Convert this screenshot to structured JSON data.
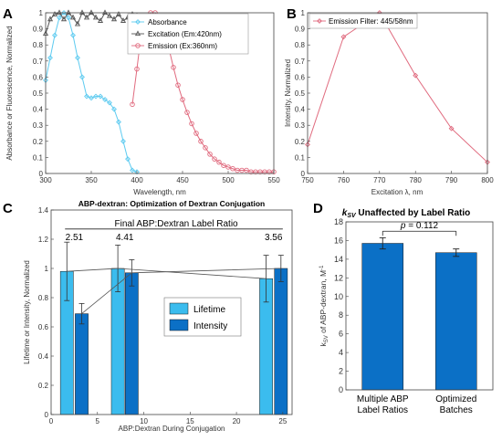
{
  "panels": [
    {
      "id": "A",
      "type": "line",
      "xlabel": "Wavelength, nm",
      "ylabel": "Absorbance or Fluorescence, Normalized",
      "xlim": [
        300,
        550
      ],
      "ylim": [
        0,
        1
      ],
      "xticks": [
        300,
        350,
        400,
        450,
        500,
        550
      ],
      "yticks": [
        0,
        0.1,
        0.2,
        0.3,
        0.4,
        0.5,
        0.6,
        0.7,
        0.8,
        0.9,
        1
      ],
      "legend": "top-right",
      "series": [
        {
          "name": "Absorbance",
          "color": "#5ecbf0",
          "marker": "diamond",
          "x": [
            300,
            305,
            310,
            315,
            320,
            325,
            330,
            335,
            340,
            345,
            350,
            355,
            360,
            365,
            370,
            375,
            380,
            385,
            390,
            395,
            400
          ],
          "y": [
            0.58,
            0.72,
            0.86,
            0.97,
            1.0,
            0.97,
            0.86,
            0.72,
            0.6,
            0.48,
            0.47,
            0.48,
            0.48,
            0.46,
            0.44,
            0.4,
            0.32,
            0.2,
            0.09,
            0.02,
            0.01
          ]
        },
        {
          "name": "Excitation (Em:420nm)",
          "color": "#555555",
          "marker": "triangle",
          "x": [
            300,
            305,
            310,
            315,
            320,
            325,
            330,
            335,
            340,
            345,
            350,
            355,
            360,
            365,
            370,
            375,
            380,
            385,
            390,
            395,
            400
          ],
          "y": [
            0.87,
            0.96,
            0.99,
            1.0,
            0.96,
            1.0,
            0.97,
            0.93,
            1.0,
            0.97,
            1.0,
            0.97,
            0.95,
            1.0,
            0.98,
            0.96,
            0.99,
            0.95,
            0.97,
            0.99,
            0.98
          ]
        },
        {
          "name": "Emission (Ex:360nm)",
          "color": "#e06a7e",
          "marker": "circle",
          "x": [
            395,
            400,
            405,
            410,
            415,
            420,
            425,
            430,
            435,
            440,
            445,
            450,
            455,
            460,
            465,
            470,
            475,
            480,
            485,
            490,
            495,
            500,
            505,
            510,
            515,
            520,
            525,
            530,
            535,
            540,
            545,
            550
          ],
          "y": [
            0.43,
            0.65,
            0.88,
            0.96,
            1.0,
            1.0,
            0.96,
            0.88,
            0.78,
            0.66,
            0.55,
            0.46,
            0.38,
            0.31,
            0.25,
            0.2,
            0.16,
            0.12,
            0.09,
            0.07,
            0.05,
            0.04,
            0.03,
            0.02,
            0.02,
            0.02,
            0.01,
            0.01,
            0.01,
            0.01,
            0.01,
            0.01
          ]
        }
      ]
    },
    {
      "id": "B",
      "type": "line",
      "xlabel": "Excitation λ, nm",
      "ylabel": "Intensity, Normalized",
      "xlim": [
        750,
        800
      ],
      "ylim": [
        0,
        1
      ],
      "xticks": [
        750,
        760,
        770,
        780,
        790,
        800
      ],
      "yticks": [
        0,
        0.1,
        0.2,
        0.3,
        0.4,
        0.5,
        0.6,
        0.7,
        0.8,
        0.9,
        1
      ],
      "legend": "top-left",
      "series": [
        {
          "name": "Emission Filter: 445/58nm",
          "color": "#e06a7e",
          "marker": "diamond",
          "x": [
            750,
            760,
            770,
            780,
            790,
            800
          ],
          "y": [
            0.18,
            0.85,
            1.0,
            0.61,
            0.28,
            0.07
          ]
        }
      ]
    },
    {
      "id": "C",
      "type": "bar",
      "title": "ABP-dextran: Optimization of Dextran Conjugation",
      "xlabel": "ABP:Dextran During Conjugation",
      "ylabel": "Lifetime or Intensity, Normalized",
      "xlim": [
        0,
        26
      ],
      "ylim": [
        0,
        1.4
      ],
      "xticks": [
        0,
        5,
        10,
        15,
        20,
        25
      ],
      "yticks": [
        0,
        0.2,
        0.4,
        0.6,
        0.8,
        1,
        1.2,
        1.4
      ],
      "legend": "center",
      "bracket_label": "Final ABP:Dextran Label Ratio",
      "ratio_labels": [
        "2.51",
        "4.41",
        "3.56"
      ],
      "series": [
        {
          "name": "Lifetime",
          "color": "#3bbcee",
          "x": [
            1.7,
            7.2,
            23.2
          ],
          "values": [
            0.98,
            1.0,
            0.93
          ],
          "errors": [
            0.2,
            0.16,
            0.16
          ]
        },
        {
          "name": "Intensity",
          "color": "#0b70c6",
          "x": [
            3.3,
            8.7,
            24.8
          ],
          "values": [
            0.69,
            0.97,
            1.0
          ],
          "errors": [
            0.07,
            0.09,
            0.09
          ]
        }
      ]
    },
    {
      "id": "D",
      "type": "bar",
      "title_prefix": "k",
      "title_sub": "SV",
      "title_suffix": " Unaffected by Label Ratio",
      "ylabel_prefix": "k",
      "ylabel_sub": "SV",
      "ylabel_suffix": " of ABP-dextran, M",
      "ylabel_sup": "-1",
      "ylim": [
        0,
        18
      ],
      "yticks": [
        0,
        2,
        4,
        6,
        8,
        10,
        12,
        14,
        16,
        18
      ],
      "categories": [
        [
          "Multiple ABP",
          "Label Ratios"
        ],
        [
          "Optimized",
          "Batches"
        ]
      ],
      "values": [
        15.7,
        14.7
      ],
      "errors": [
        0.6,
        0.4
      ],
      "color": "#0b70c6",
      "pvalue_label": "p = 0.112"
    }
  ]
}
